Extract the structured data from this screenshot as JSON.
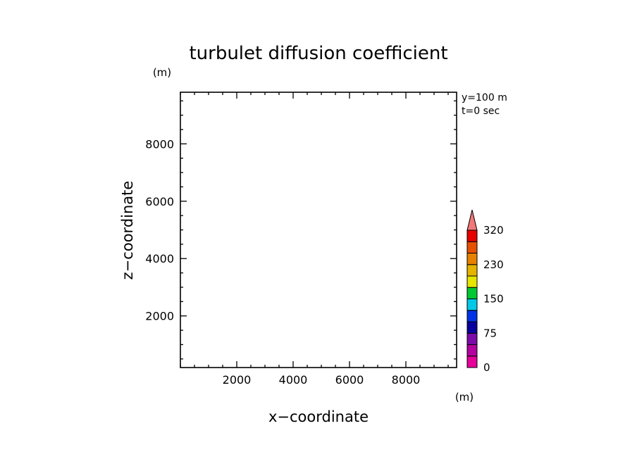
{
  "chart_data": {
    "type": "heatmap",
    "title": "turbulet diffusion coefficient",
    "xlabel": "x−coordinate",
    "ylabel": "z−coordinate",
    "x_unit": "(m)",
    "y_unit": "(m)",
    "annotations": [
      "y=100 m",
      "t=0 sec"
    ],
    "xlim": [
      0,
      9800
    ],
    "ylim": [
      200,
      9800
    ],
    "x_major_ticks": [
      2000,
      4000,
      6000,
      8000
    ],
    "y_major_ticks": [
      2000,
      4000,
      6000,
      8000
    ],
    "x_minor_step": 500,
    "y_minor_step": 500,
    "x_tick_labels": [
      "2000",
      "4000",
      "6000",
      "8000"
    ],
    "y_tick_labels": [
      "2000",
      "4000",
      "6000",
      "8000"
    ],
    "grid": false,
    "values": [],
    "colorbar": {
      "placement": "right",
      "levels": [
        0,
        25,
        50,
        75,
        100,
        125,
        150,
        175,
        200,
        230,
        260,
        290,
        320
      ],
      "labels": [
        {
          "value": 0,
          "text": "0"
        },
        {
          "value": 75,
          "text": "75"
        },
        {
          "value": 150,
          "text": "150"
        },
        {
          "value": 230,
          "text": "230"
        },
        {
          "value": 320,
          "text": "320"
        }
      ],
      "colors": [
        "#e6009a",
        "#b3009e",
        "#7b0aa8",
        "#08009e",
        "#0032e6",
        "#00c8e6",
        "#00c832",
        "#e6e600",
        "#e6b400",
        "#e68200",
        "#e65000",
        "#e60000"
      ],
      "extend_color": "#f07878"
    }
  }
}
